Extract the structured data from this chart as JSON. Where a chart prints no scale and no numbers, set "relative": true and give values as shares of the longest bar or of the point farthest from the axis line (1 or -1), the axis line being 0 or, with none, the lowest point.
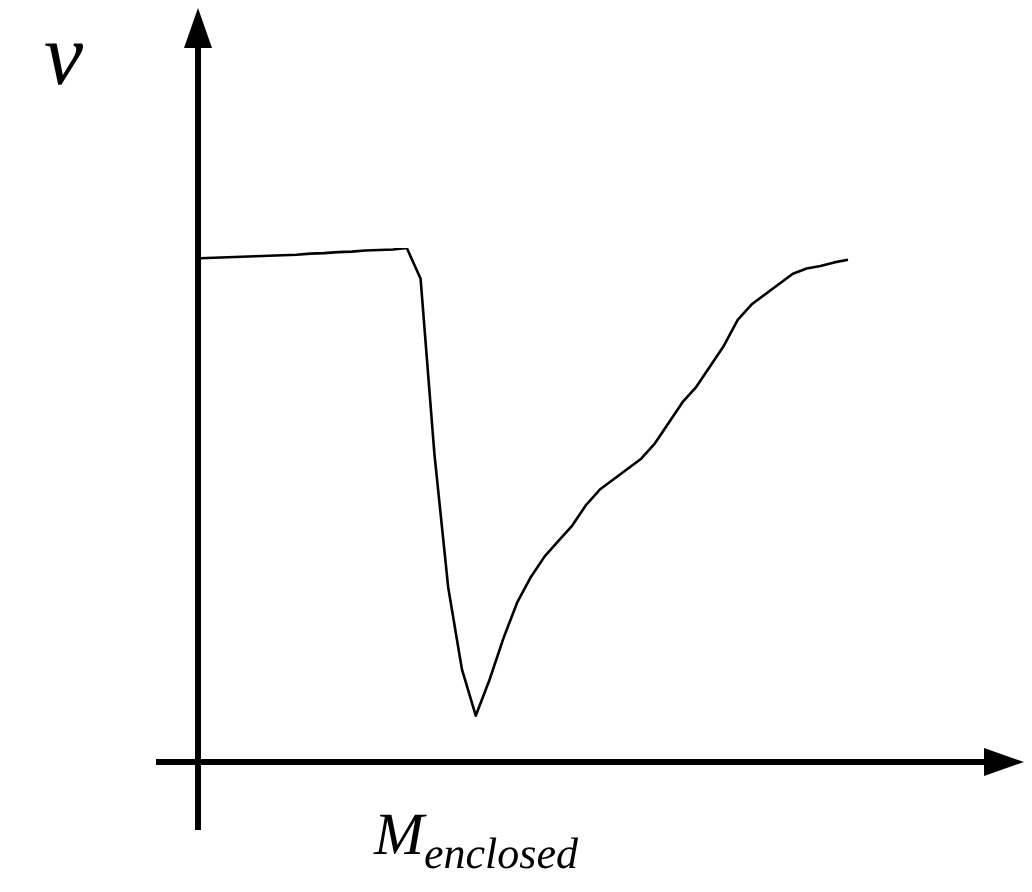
{
  "chart_data": {
    "type": "line",
    "xlabel": "M$_{enclosed}$",
    "ylabel": "v",
    "relative": true,
    "color": "#000000",
    "categories": [
      null,
      null,
      null,
      null,
      null,
      null,
      null,
      null,
      null,
      null,
      null,
      null,
      null,
      null,
      null,
      null,
      null,
      null,
      null,
      null,
      null,
      null,
      null,
      null,
      null,
      null,
      null,
      null,
      null,
      null,
      null,
      null,
      null,
      null,
      null,
      null,
      null,
      null,
      null,
      null,
      null,
      null,
      null,
      null,
      null,
      null,
      null,
      null
    ],
    "values": [
      0.98,
      0.981,
      0.982,
      0.983,
      0.984,
      0.985,
      0.986,
      0.987,
      0.989,
      0.99,
      0.992,
      0.993,
      0.995,
      0.996,
      0.997,
      1,
      0.94,
      0.6,
      0.34,
      0.18,
      0.09,
      0.16,
      0.24,
      0.31,
      0.36,
      0.4,
      0.43,
      0.46,
      0.5,
      0.53,
      0.55,
      0.57,
      0.59,
      0.62,
      0.66,
      0.7,
      0.73,
      0.77,
      0.81,
      0.86,
      0.89,
      0.91,
      0.93,
      0.95,
      0.96,
      0.965,
      0.972,
      0.977
    ]
  }
}
